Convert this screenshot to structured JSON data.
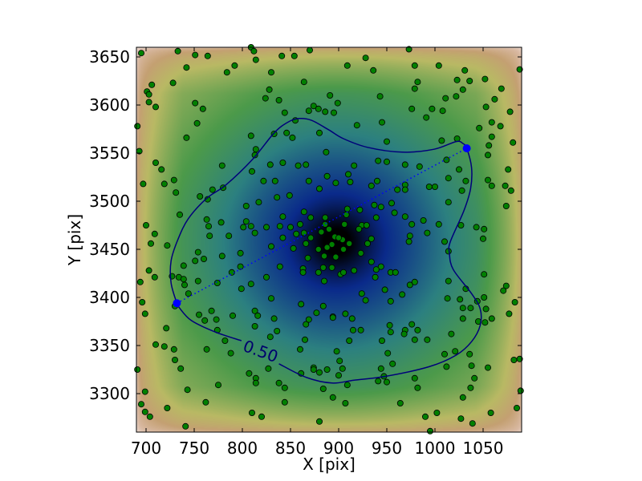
{
  "chart_data": {
    "type": "scatter",
    "xlabel": "X [pix]",
    "ylabel": "Y [pix]",
    "xlim": [
      690,
      1090
    ],
    "ylim": [
      3260,
      3660
    ],
    "xticks": [
      "700",
      "750",
      "800",
      "850",
      "900",
      "950",
      "1000",
      "1050"
    ],
    "yticks": [
      "3300",
      "3350",
      "3400",
      "3450",
      "3500",
      "3550",
      "3600",
      "3650"
    ],
    "grid": false,
    "background_density": {
      "peak": [
        898,
        3458
      ],
      "colormap": [
        "#f8f0f0",
        "#d9b9a2",
        "#c4a072",
        "#b9b964",
        "#4c9a4a",
        "#2c8080",
        "#0a2a8a",
        "#000000"
      ]
    },
    "contour": {
      "level_label": "0.50",
      "color": "#00007a",
      "path": [
        [
          838,
          3331
        ],
        [
          866,
          3317
        ],
        [
          893,
          3311
        ],
        [
          916,
          3314
        ],
        [
          949,
          3318
        ],
        [
          994,
          3328
        ],
        [
          1022,
          3340
        ],
        [
          1038,
          3354
        ],
        [
          1047,
          3371
        ],
        [
          1047,
          3388
        ],
        [
          1038,
          3404
        ],
        [
          1019,
          3429
        ],
        [
          1015,
          3446
        ],
        [
          1016,
          3458
        ],
        [
          1030,
          3490
        ],
        [
          1037,
          3513
        ],
        [
          1038,
          3535
        ],
        [
          1033,
          3555
        ],
        [
          1029,
          3560
        ],
        [
          1022,
          3562
        ],
        [
          999,
          3554
        ],
        [
          966,
          3551
        ],
        [
          930,
          3556
        ],
        [
          905,
          3565
        ],
        [
          890,
          3574
        ],
        [
          872,
          3584
        ],
        [
          859,
          3586
        ],
        [
          847,
          3582
        ],
        [
          833,
          3571
        ],
        [
          811,
          3544
        ],
        [
          783,
          3517
        ],
        [
          763,
          3503
        ],
        [
          744,
          3482
        ],
        [
          733,
          3460
        ],
        [
          726,
          3438
        ],
        [
          726,
          3415
        ],
        [
          732,
          3394
        ],
        [
          734,
          3390
        ],
        [
          747,
          3376
        ],
        [
          772,
          3364
        ],
        [
          799,
          3355
        ]
      ],
      "label_position": [
        819,
        3344
      ]
    },
    "endpoints": {
      "color": "#0000ff",
      "points": [
        [
          732,
          3394
        ],
        [
          1033,
          3555
        ]
      ]
    },
    "points_color": "#008000",
    "points": [
      [
        695,
        3654
      ],
      [
        733,
        3656
      ],
      [
        751,
        3652
      ],
      [
        764,
        3651
      ],
      [
        742,
        3639
      ],
      [
        728,
        3623
      ],
      [
        706,
        3621
      ],
      [
        701,
        3614
      ],
      [
        703,
        3611
      ],
      [
        703,
        3603
      ],
      [
        710,
        3598
      ],
      [
        691,
        3578
      ],
      [
        693,
        3552
      ],
      [
        751,
        3602
      ],
      [
        759,
        3596
      ],
      [
        753,
        3581
      ],
      [
        742,
        3566
      ],
      [
        710,
        3540
      ],
      [
        716,
        3533
      ],
      [
        697,
        3518
      ],
      [
        719,
        3518
      ],
      [
        729,
        3522
      ],
      [
        731,
        3509
      ],
      [
        735,
        3486
      ],
      [
        700,
        3475
      ],
      [
        709,
        3466
      ],
      [
        756,
        3505
      ],
      [
        764,
        3502
      ],
      [
        769,
        3512
      ],
      [
        780,
        3514
      ],
      [
        779,
        3537
      ],
      [
        784,
        3634
      ],
      [
        792,
        3641
      ],
      [
        809,
        3660
      ],
      [
        812,
        3656
      ],
      [
        814,
        3647
      ],
      [
        830,
        3634
      ],
      [
        841,
        3651
      ],
      [
        854,
        3651
      ],
      [
        870,
        3657
      ],
      [
        864,
        3624
      ],
      [
        891,
        3610
      ],
      [
        828,
        3616
      ],
      [
        824,
        3607
      ],
      [
        838,
        3605
      ],
      [
        844,
        3592
      ],
      [
        869,
        3594
      ],
      [
        874,
        3599
      ],
      [
        879,
        3596
      ],
      [
        886,
        3593
      ],
      [
        855,
        3584
      ],
      [
        846,
        3571
      ],
      [
        852,
        3566
      ],
      [
        833,
        3570
      ],
      [
        809,
        3568
      ],
      [
        814,
        3554
      ],
      [
        813,
        3548
      ],
      [
        810,
        3531
      ],
      [
        829,
        3538
      ],
      [
        842,
        3540
      ],
      [
        858,
        3537
      ],
      [
        866,
        3538
      ],
      [
        880,
        3571
      ],
      [
        887,
        3551
      ],
      [
        888,
        3526
      ],
      [
        869,
        3521
      ],
      [
        880,
        3513
      ],
      [
        822,
        3521
      ],
      [
        834,
        3521
      ],
      [
        836,
        3504
      ],
      [
        849,
        3506
      ],
      [
        817,
        3499
      ],
      [
        804,
        3495
      ],
      [
        864,
        3489
      ],
      [
        871,
        3483
      ],
      [
        842,
        3484
      ],
      [
        860,
        3476
      ],
      [
        886,
        3483
      ],
      [
        890,
        3471
      ],
      [
        763,
        3481
      ],
      [
        778,
        3478
      ],
      [
        765,
        3474
      ],
      [
        804,
        3479
      ],
      [
        801,
        3473
      ],
      [
        809,
        3474
      ],
      [
        825,
        3473
      ],
      [
        839,
        3474
      ],
      [
        850,
        3473
      ],
      [
        813,
        3467
      ],
      [
        766,
        3464
      ],
      [
        786,
        3464
      ],
      [
        842,
        3462
      ],
      [
        856,
        3466
      ],
      [
        864,
        3467
      ],
      [
        871,
        3462
      ],
      [
        882,
        3468
      ],
      [
        886,
        3476
      ],
      [
        973,
        3658
      ],
      [
        928,
        3649
      ],
      [
        909,
        3641
      ],
      [
        936,
        3636
      ],
      [
        979,
        3641
      ],
      [
        1004,
        3641
      ],
      [
        1031,
        3636
      ],
      [
        1088,
        3637
      ],
      [
        1023,
        3626
      ],
      [
        1036,
        3625
      ],
      [
        1052,
        3627
      ],
      [
        982,
        3624
      ],
      [
        979,
        3617
      ],
      [
        1029,
        3616
      ],
      [
        1022,
        3609
      ],
      [
        1069,
        3617
      ],
      [
        1011,
        3607
      ],
      [
        1062,
        3606
      ],
      [
        899,
        3602
      ],
      [
        895,
        3592
      ],
      [
        943,
        3609
      ],
      [
        976,
        3596
      ],
      [
        997,
        3596
      ],
      [
        1008,
        3594
      ],
      [
        991,
        3587
      ],
      [
        1053,
        3598
      ],
      [
        1078,
        3593
      ],
      [
        1059,
        3582
      ],
      [
        1068,
        3578
      ],
      [
        1046,
        3576
      ],
      [
        945,
        3582
      ],
      [
        919,
        3579
      ],
      [
        950,
        3562
      ],
      [
        1007,
        3563
      ],
      [
        1023,
        3565
      ],
      [
        1059,
        3567
      ],
      [
        1056,
        3558
      ],
      [
        1055,
        3548
      ],
      [
        1081,
        3561
      ],
      [
        1076,
        3533
      ],
      [
        1012,
        3543
      ],
      [
        1025,
        3533
      ],
      [
        984,
        3536
      ],
      [
        969,
        3538
      ],
      [
        916,
        3537
      ],
      [
        941,
        3542
      ],
      [
        950,
        3541
      ],
      [
        910,
        3528
      ],
      [
        912,
        3520
      ],
      [
        897,
        3519
      ],
      [
        934,
        3516
      ],
      [
        940,
        3521
      ],
      [
        961,
        3512
      ],
      [
        969,
        3517
      ],
      [
        969,
        3512
      ],
      [
        994,
        3515
      ],
      [
        1000,
        3515
      ],
      [
        1014,
        3524
      ],
      [
        1032,
        3521
      ],
      [
        1028,
        3511
      ],
      [
        1055,
        3522
      ],
      [
        1059,
        3516
      ],
      [
        1073,
        3516
      ],
      [
        1079,
        3511
      ],
      [
        1074,
        3495
      ],
      [
        1014,
        3499
      ],
      [
        955,
        3498
      ],
      [
        937,
        3496
      ],
      [
        944,
        3494
      ],
      [
        922,
        3491
      ],
      [
        909,
        3492
      ],
      [
        908,
        3486
      ],
      [
        958,
        3488
      ],
      [
        939,
        3483
      ],
      [
        969,
        3484
      ],
      [
        988,
        3480
      ],
      [
        976,
        3476
      ],
      [
        1004,
        3476
      ],
      [
        1027,
        3475
      ],
      [
        1043,
        3473
      ],
      [
        1051,
        3471
      ],
      [
        992,
        3467
      ],
      [
        974,
        3464
      ],
      [
        906,
        3476
      ],
      [
        924,
        3475
      ],
      [
        929,
        3475
      ],
      [
        921,
        3471
      ],
      [
        896,
        3463
      ],
      [
        904,
        3460
      ],
      [
        934,
        3461
      ],
      [
        1050,
        3461
      ],
      [
        705,
        3456
      ],
      [
        722,
        3454
      ],
      [
        754,
        3447
      ],
      [
        751,
        3438
      ],
      [
        760,
        3440
      ],
      [
        779,
        3443
      ],
      [
        798,
        3446
      ],
      [
        830,
        3453
      ],
      [
        853,
        3451
      ],
      [
        866,
        3456
      ],
      [
        879,
        3450
      ],
      [
        885,
        3443
      ],
      [
        868,
        3441
      ],
      [
        863,
        3430
      ],
      [
        863,
        3426
      ],
      [
        879,
        3426
      ],
      [
        884,
        3431
      ],
      [
        885,
        3417
      ],
      [
        839,
        3432
      ],
      [
        798,
        3432
      ],
      [
        789,
        3426
      ],
      [
        739,
        3433
      ],
      [
        703,
        3428
      ],
      [
        709,
        3421
      ],
      [
        694,
        3416
      ],
      [
        727,
        3422
      ],
      [
        734,
        3421
      ],
      [
        739,
        3419
      ],
      [
        740,
        3413
      ],
      [
        754,
        3417
      ],
      [
        774,
        3415
      ],
      [
        744,
        3404
      ],
      [
        825,
        3421
      ],
      [
        809,
        3414
      ],
      [
        799,
        3409
      ],
      [
        696,
        3395
      ],
      [
        730,
        3391
      ],
      [
        699,
        3383
      ],
      [
        768,
        3386
      ],
      [
        755,
        3382
      ],
      [
        761,
        3376
      ],
      [
        773,
        3377
      ],
      [
        790,
        3381
      ],
      [
        813,
        3386
      ],
      [
        816,
        3381
      ],
      [
        830,
        3399
      ],
      [
        833,
        3378
      ],
      [
        813,
        3370
      ],
      [
        774,
        3366
      ],
      [
        836,
        3365
      ],
      [
        829,
        3359
      ],
      [
        782,
        3355
      ],
      [
        721,
        3368
      ],
      [
        710,
        3351
      ],
      [
        719,
        3349
      ],
      [
        729,
        3346
      ],
      [
        730,
        3335
      ],
      [
        736,
        3326
      ],
      [
        691,
        3325
      ],
      [
        763,
        3346
      ],
      [
        788,
        3342
      ],
      [
        861,
        3393
      ],
      [
        877,
        3384
      ],
      [
        884,
        3391
      ],
      [
        894,
        3380
      ],
      [
        869,
        3377
      ],
      [
        866,
        3372
      ],
      [
        865,
        3356
      ],
      [
        860,
        3346
      ],
      [
        827,
        3326
      ],
      [
        807,
        3321
      ],
      [
        814,
        3316
      ],
      [
        814,
        3311
      ],
      [
        838,
        3311
      ],
      [
        844,
        3306
      ],
      [
        861,
        3321
      ],
      [
        874,
        3327
      ],
      [
        874,
        3325
      ],
      [
        880,
        3322
      ],
      [
        888,
        3325
      ],
      [
        884,
        3305
      ],
      [
        775,
        3309
      ],
      [
        743,
        3304
      ],
      [
        699,
        3302
      ],
      [
        695,
        3289
      ],
      [
        722,
        3285
      ],
      [
        762,
        3291
      ],
      [
        699,
        3281
      ],
      [
        704,
        3276
      ],
      [
        741,
        3266
      ],
      [
        844,
        3291
      ],
      [
        810,
        3280
      ],
      [
        820,
        3276
      ],
      [
        880,
        3271
      ],
      [
        911,
        3456
      ],
      [
        930,
        3456
      ],
      [
        973,
        3458
      ],
      [
        1010,
        3458
      ],
      [
        1014,
        3448
      ],
      [
        897,
        3442
      ],
      [
        923,
        3446
      ],
      [
        934,
        3437
      ],
      [
        944,
        3432
      ],
      [
        939,
        3429
      ],
      [
        893,
        3431
      ],
      [
        902,
        3424
      ],
      [
        905,
        3426
      ],
      [
        916,
        3428
      ],
      [
        938,
        3421
      ],
      [
        954,
        3426
      ],
      [
        959,
        3426
      ],
      [
        974,
        3413
      ],
      [
        979,
        3416
      ],
      [
        948,
        3408
      ],
      [
        966,
        3403
      ],
      [
        924,
        3404
      ],
      [
        928,
        3397
      ],
      [
        954,
        3396
      ],
      [
        1014,
        3417
      ],
      [
        1032,
        3409
      ],
      [
        1051,
        3424
      ],
      [
        1013,
        3399
      ],
      [
        1026,
        3398
      ],
      [
        1044,
        3396
      ],
      [
        1051,
        3400
      ],
      [
        1029,
        3389
      ],
      [
        1037,
        3389
      ],
      [
        1053,
        3388
      ],
      [
        1029,
        3378
      ],
      [
        1045,
        3375
      ],
      [
        1052,
        3374
      ],
      [
        1059,
        3378
      ],
      [
        1074,
        3412
      ],
      [
        1071,
        3407
      ],
      [
        1083,
        3395
      ],
      [
        1077,
        3383
      ],
      [
        894,
        3379
      ],
      [
        907,
        3383
      ],
      [
        914,
        3378
      ],
      [
        915,
        3366
      ],
      [
        923,
        3366
      ],
      [
        911,
        3355
      ],
      [
        953,
        3371
      ],
      [
        954,
        3364
      ],
      [
        969,
        3366
      ],
      [
        968,
        3362
      ],
      [
        976,
        3372
      ],
      [
        982,
        3366
      ],
      [
        945,
        3355
      ],
      [
        979,
        3356
      ],
      [
        992,
        3356
      ],
      [
        1017,
        3362
      ],
      [
        898,
        3344
      ],
      [
        901,
        3334
      ],
      [
        904,
        3326
      ],
      [
        900,
        3319
      ],
      [
        951,
        3342
      ],
      [
        956,
        3331
      ],
      [
        944,
        3326
      ],
      [
        947,
        3318
      ],
      [
        941,
        3313
      ],
      [
        950,
        3312
      ],
      [
        909,
        3309
      ],
      [
        894,
        3296
      ],
      [
        907,
        3290
      ],
      [
        964,
        3290
      ],
      [
        979,
        3316
      ],
      [
        982,
        3306
      ],
      [
        1010,
        3341
      ],
      [
        1021,
        3344
      ],
      [
        1036,
        3341
      ],
      [
        1012,
        3328
      ],
      [
        1038,
        3329
      ],
      [
        1055,
        3327
      ],
      [
        1041,
        3316
      ],
      [
        1037,
        3306
      ],
      [
        1029,
        3296
      ],
      [
        1082,
        3335
      ],
      [
        1088,
        3336
      ],
      [
        1089,
        3303
      ],
      [
        1085,
        3285
      ],
      [
        1058,
        3280
      ],
      [
        1027,
        3274
      ],
      [
        1039,
        3269
      ],
      [
        1002,
        3280
      ],
      [
        990,
        3276
      ],
      [
        995,
        3261
      ],
      [
        900,
        3462
      ],
      [
        893,
        3455
      ],
      [
        905,
        3450
      ],
      [
        888,
        3452
      ]
    ]
  }
}
